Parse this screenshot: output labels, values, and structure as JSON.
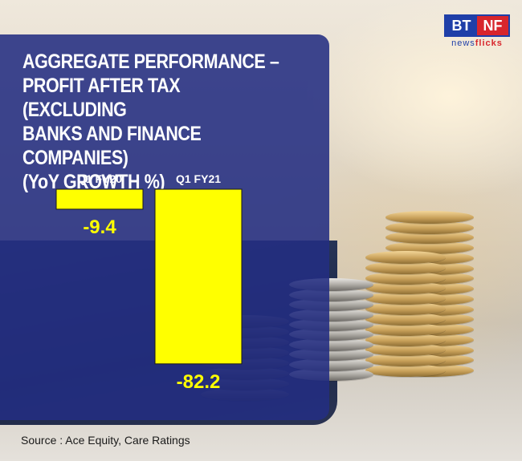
{
  "logo": {
    "bt": "BT",
    "nf": "NF",
    "sub_a": "news",
    "sub_b": "flicks"
  },
  "title_lines": [
    "AGGREGATE PERFORMANCE –",
    "PROFIT AFTER TAX (EXCLUDING",
    "BANKS AND FINANCE COMPANIES)",
    "(YoY GROWTH %)"
  ],
  "source": "Source : Ace Equity, Care Ratings",
  "colors": {
    "panel": "#232d82",
    "bar": "#ffff00",
    "value_text": "#ffff00",
    "label_text": "#ffffff"
  },
  "chart_data": {
    "type": "bar",
    "title": "AGGREGATE PERFORMANCE – PROFIT AFTER TAX (EXCLUDING BANKS AND FINANCE COMPANIES) (YoY GROWTH %)",
    "categories": [
      "Q1 FY20",
      "Q1 FY21"
    ],
    "values": [
      -9.4,
      -82.2
    ],
    "value_labels": [
      "-9.4",
      "-82.2"
    ],
    "xlabel": "",
    "ylabel": "",
    "ylim": [
      -90,
      0
    ],
    "grid": false,
    "legend": "none"
  }
}
